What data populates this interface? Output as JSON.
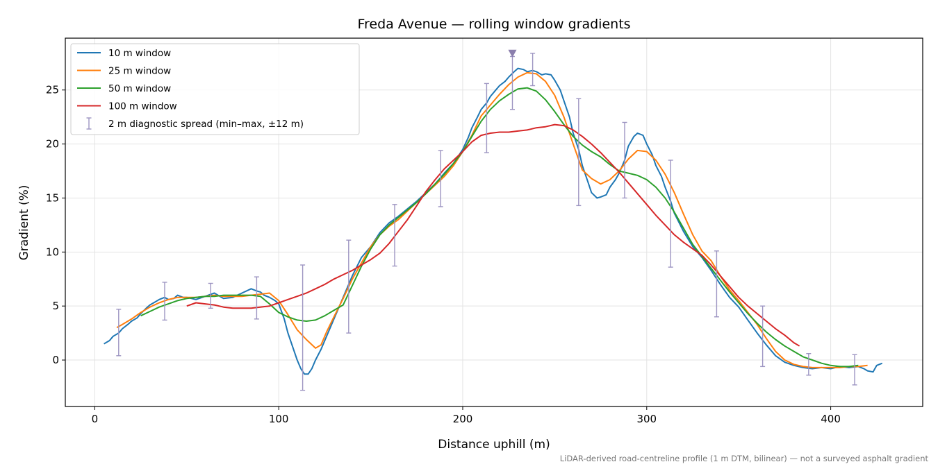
{
  "chart_data": {
    "type": "line",
    "title": "Freda Avenue — rolling window gradients",
    "xlabel": "Distance uphill (m)",
    "ylabel": "Gradient (%)",
    "footnote": "LiDAR-derived road-centreline profile (1 m DTM, bilinear) — not a surveyed asphalt gradient",
    "xlim": [
      -16,
      450
    ],
    "ylim": [
      -4.3,
      29.8
    ],
    "xticks": [
      0,
      100,
      200,
      300,
      400
    ],
    "yticks": [
      0,
      5,
      10,
      15,
      20,
      25
    ],
    "grid": true,
    "legend_position": "top-left",
    "peak_marker": {
      "x": 227,
      "y": 28.4,
      "color": "#8b7fad"
    },
    "series": [
      {
        "name": "10 m window",
        "color": "#1f77b4",
        "x": [
          5,
          8,
          10,
          13,
          15,
          18,
          20,
          23,
          25,
          28,
          30,
          33,
          35,
          38,
          40,
          43,
          45,
          48,
          50,
          55,
          60,
          65,
          70,
          75,
          80,
          85,
          88,
          90,
          92,
          95,
          98,
          100,
          103,
          105,
          108,
          110,
          112,
          114,
          116,
          118,
          120,
          123,
          126,
          130,
          135,
          140,
          145,
          150,
          155,
          160,
          165,
          170,
          175,
          180,
          185,
          190,
          195,
          200,
          203,
          205,
          208,
          210,
          213,
          215,
          218,
          220,
          223,
          225,
          228,
          230,
          233,
          235,
          238,
          240,
          243,
          245,
          248,
          250,
          253,
          255,
          258,
          260,
          263,
          265,
          268,
          270,
          273,
          275,
          278,
          280,
          283,
          285,
          288,
          290,
          293,
          295,
          298,
          300,
          303,
          305,
          308,
          310,
          313,
          315,
          320,
          325,
          330,
          335,
          340,
          345,
          350,
          355,
          360,
          365,
          370,
          375,
          380,
          385,
          390,
          395,
          400,
          405,
          410,
          415,
          418,
          420,
          423,
          425,
          428
        ],
        "y": [
          1.5,
          1.8,
          2.2,
          2.5,
          2.9,
          3.3,
          3.6,
          3.9,
          4.3,
          4.8,
          5.1,
          5.4,
          5.6,
          5.8,
          5.6,
          5.7,
          6.0,
          5.8,
          5.8,
          5.6,
          5.9,
          6.2,
          5.7,
          5.8,
          6.2,
          6.6,
          6.4,
          6.3,
          6.0,
          5.8,
          5.5,
          5.2,
          3.8,
          2.5,
          1.0,
          0.0,
          -0.8,
          -1.3,
          -1.3,
          -0.8,
          0.0,
          1.0,
          2.2,
          3.8,
          5.8,
          7.8,
          9.5,
          10.5,
          11.8,
          12.7,
          13.3,
          14.0,
          14.7,
          15.5,
          16.3,
          17.3,
          18.2,
          19.5,
          20.6,
          21.5,
          22.5,
          23.2,
          23.8,
          24.4,
          25.0,
          25.4,
          25.8,
          26.2,
          26.7,
          27.0,
          26.9,
          26.7,
          26.8,
          26.7,
          26.4,
          26.5,
          26.4,
          25.9,
          25.0,
          24.0,
          22.5,
          21.0,
          19.5,
          18.0,
          16.5,
          15.5,
          15.0,
          15.1,
          15.3,
          16.0,
          16.7,
          17.3,
          18.5,
          19.8,
          20.7,
          21.0,
          20.8,
          20.0,
          19.0,
          18.0,
          17.0,
          16.0,
          14.7,
          13.6,
          11.9,
          10.5,
          9.5,
          8.3,
          7.0,
          5.8,
          4.9,
          3.7,
          2.5,
          1.4,
          0.4,
          -0.2,
          -0.5,
          -0.7,
          -0.8,
          -0.7,
          -0.8,
          -0.6,
          -0.7,
          -0.6,
          -0.8,
          -1.0,
          -1.1,
          -0.5,
          -0.3
        ]
      },
      {
        "name": "25 m window",
        "color": "#ff7f0e",
        "x": [
          12,
          15,
          20,
          25,
          30,
          35,
          40,
          45,
          50,
          55,
          60,
          65,
          70,
          75,
          80,
          85,
          90,
          95,
          100,
          105,
          110,
          115,
          120,
          123,
          126,
          130,
          135,
          140,
          145,
          150,
          155,
          160,
          165,
          170,
          175,
          180,
          185,
          190,
          195,
          200,
          205,
          210,
          215,
          220,
          225,
          230,
          235,
          240,
          245,
          250,
          255,
          260,
          265,
          270,
          275,
          280,
          285,
          290,
          295,
          300,
          305,
          310,
          315,
          320,
          325,
          330,
          335,
          340,
          345,
          350,
          355,
          360,
          365,
          370,
          375,
          380,
          385,
          390,
          395,
          400,
          405,
          410,
          415,
          420
        ],
        "y": [
          3.0,
          3.3,
          3.8,
          4.4,
          4.9,
          5.3,
          5.6,
          5.8,
          5.8,
          5.8,
          5.9,
          6.0,
          5.9,
          5.9,
          5.9,
          6.0,
          6.1,
          6.2,
          5.5,
          4.2,
          2.8,
          1.9,
          1.1,
          1.4,
          2.6,
          4.0,
          5.7,
          7.5,
          9.0,
          10.5,
          11.6,
          12.4,
          13.0,
          13.8,
          14.6,
          15.4,
          16.2,
          17.0,
          18.0,
          19.3,
          20.8,
          22.6,
          23.6,
          24.6,
          25.5,
          26.2,
          26.6,
          26.5,
          25.8,
          24.5,
          22.5,
          20.0,
          17.6,
          16.8,
          16.3,
          16.7,
          17.5,
          18.6,
          19.4,
          19.3,
          18.5,
          17.2,
          15.5,
          13.5,
          11.6,
          10.1,
          9.2,
          7.8,
          6.5,
          5.5,
          4.4,
          3.3,
          2.0,
          0.8,
          0.0,
          -0.4,
          -0.6,
          -0.7,
          -0.7,
          -0.7,
          -0.7,
          -0.6,
          -0.6,
          -0.5
        ]
      },
      {
        "name": "50 m window",
        "color": "#2ca02c",
        "x": [
          25,
          30,
          35,
          40,
          45,
          50,
          55,
          60,
          65,
          70,
          75,
          80,
          85,
          90,
          95,
          100,
          105,
          110,
          115,
          120,
          125,
          130,
          135,
          140,
          145,
          150,
          155,
          160,
          165,
          170,
          175,
          180,
          185,
          190,
          195,
          200,
          205,
          210,
          215,
          220,
          225,
          230,
          235,
          240,
          245,
          250,
          255,
          260,
          265,
          270,
          275,
          280,
          285,
          290,
          295,
          300,
          305,
          310,
          315,
          320,
          325,
          330,
          335,
          340,
          345,
          350,
          355,
          360,
          365,
          370,
          375,
          380,
          385,
          390,
          395,
          400,
          405,
          410,
          415
        ],
        "y": [
          4.1,
          4.5,
          4.9,
          5.2,
          5.5,
          5.7,
          5.8,
          5.9,
          5.9,
          6.0,
          6.0,
          6.0,
          6.0,
          5.9,
          5.2,
          4.4,
          4.0,
          3.7,
          3.6,
          3.7,
          4.1,
          4.6,
          5.1,
          6.9,
          8.7,
          10.3,
          11.6,
          12.5,
          13.2,
          13.9,
          14.6,
          15.4,
          16.3,
          17.2,
          18.2,
          19.3,
          20.7,
          22.1,
          23.2,
          24.0,
          24.6,
          25.1,
          25.2,
          24.9,
          24.1,
          23.0,
          21.8,
          20.7,
          19.9,
          19.3,
          18.8,
          18.1,
          17.5,
          17.3,
          17.1,
          16.7,
          16.0,
          15.0,
          13.7,
          12.2,
          10.7,
          9.6,
          8.5,
          7.4,
          6.3,
          5.3,
          4.3,
          3.4,
          2.6,
          1.9,
          1.3,
          0.8,
          0.3,
          0.0,
          -0.3,
          -0.5,
          -0.6,
          -0.6,
          -0.5
        ]
      },
      {
        "name": "100 m window",
        "color": "#d62728",
        "x": [
          50,
          55,
          60,
          65,
          70,
          75,
          80,
          85,
          90,
          95,
          100,
          105,
          110,
          115,
          120,
          125,
          130,
          135,
          140,
          145,
          150,
          155,
          160,
          165,
          170,
          175,
          180,
          185,
          190,
          195,
          200,
          205,
          210,
          215,
          220,
          225,
          230,
          235,
          240,
          245,
          250,
          255,
          260,
          265,
          270,
          275,
          280,
          285,
          290,
          295,
          300,
          305,
          310,
          315,
          320,
          325,
          330,
          335,
          340,
          345,
          350,
          355,
          360,
          365,
          370,
          375,
          380,
          383
        ],
        "y": [
          5.0,
          5.3,
          5.2,
          5.1,
          4.9,
          4.8,
          4.8,
          4.8,
          4.9,
          5.0,
          5.3,
          5.6,
          5.9,
          6.2,
          6.6,
          7.0,
          7.5,
          7.9,
          8.3,
          8.8,
          9.3,
          9.9,
          10.8,
          11.9,
          13.0,
          14.3,
          15.6,
          16.7,
          17.7,
          18.5,
          19.3,
          20.2,
          20.8,
          21.0,
          21.1,
          21.1,
          21.2,
          21.3,
          21.5,
          21.6,
          21.8,
          21.7,
          21.3,
          20.7,
          20.0,
          19.2,
          18.3,
          17.4,
          16.4,
          15.4,
          14.4,
          13.4,
          12.5,
          11.6,
          10.9,
          10.3,
          9.7,
          8.8,
          7.8,
          6.8,
          5.8,
          5.0,
          4.3,
          3.6,
          2.9,
          2.3,
          1.6,
          1.3
        ]
      }
    ],
    "errorbars": {
      "name": "2 m diagnostic spread (min–max, ±12 m)",
      "color": "#9d95c2",
      "points": [
        {
          "x": 13,
          "low": 0.4,
          "high": 4.7
        },
        {
          "x": 38,
          "low": 3.7,
          "high": 7.2
        },
        {
          "x": 63,
          "low": 4.8,
          "high": 7.1
        },
        {
          "x": 88,
          "low": 3.8,
          "high": 7.7
        },
        {
          "x": 113,
          "low": -2.8,
          "high": 8.8
        },
        {
          "x": 138,
          "low": 2.5,
          "high": 11.1
        },
        {
          "x": 163,
          "low": 8.7,
          "high": 14.4
        },
        {
          "x": 188,
          "low": 14.2,
          "high": 19.4
        },
        {
          "x": 213,
          "low": 19.2,
          "high": 25.6
        },
        {
          "x": 227,
          "low": 23.2,
          "high": 28.1
        },
        {
          "x": 238,
          "low": 25.4,
          "high": 28.4
        },
        {
          "x": 263,
          "low": 14.3,
          "high": 24.2
        },
        {
          "x": 288,
          "low": 15.0,
          "high": 22.0
        },
        {
          "x": 313,
          "low": 8.6,
          "high": 18.5
        },
        {
          "x": 338,
          "low": 4.0,
          "high": 10.1
        },
        {
          "x": 363,
          "low": -0.6,
          "high": 5.0
        },
        {
          "x": 388,
          "low": -1.4,
          "high": 0.6
        },
        {
          "x": 413,
          "low": -2.3,
          "high": 0.5
        }
      ]
    }
  }
}
